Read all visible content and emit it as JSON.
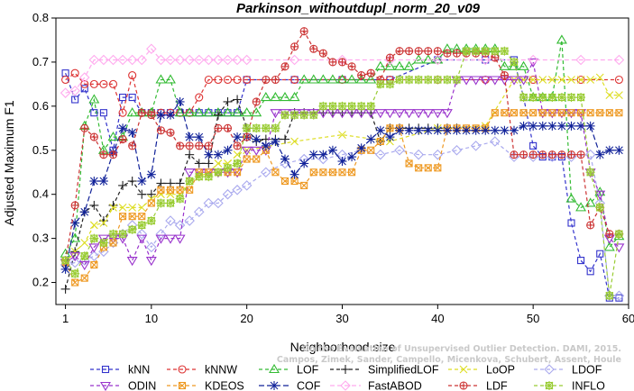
{
  "chart_data": {
    "type": "line",
    "title": "Parkinson_withoutdupl_norm_20_v09",
    "xlabel": "Neighborhood size",
    "ylabel": "Adjusted Maximum F1",
    "xlim": [
      0,
      60
    ],
    "ylim": [
      0.15,
      0.8
    ],
    "xticks": [
      1,
      10,
      20,
      30,
      40,
      50,
      60
    ],
    "yticks": [
      0.2,
      0.3,
      0.4,
      0.5,
      0.6,
      0.7,
      0.8
    ],
    "grid": false,
    "legend_position": "bottom",
    "credit": "Campos, Zimek, Sander, Campello, Micenkova, Schubert, Assent, Houle",
    "credit_source": "On the Evaluation of Unsupervised Outlier Detection. DAMI, 2015.",
    "series": [
      {
        "name": "kNN",
        "color": "#3333cc",
        "marker": "square",
        "dash": "4,3",
        "x": [
          1,
          2,
          3,
          4,
          5,
          6,
          7,
          8,
          9,
          10,
          11,
          12,
          13,
          14,
          15,
          16,
          17,
          18,
          19,
          20,
          25,
          30,
          35,
          40,
          45,
          48,
          49,
          50,
          51,
          52,
          53,
          54,
          55,
          56,
          57,
          58,
          59
        ],
        "y": [
          0.675,
          0.615,
          0.64,
          0.585,
          0.585,
          0.5,
          0.62,
          0.62,
          0.585,
          0.585,
          0.585,
          0.585,
          0.585,
          0.585,
          0.585,
          0.585,
          0.585,
          0.585,
          0.585,
          0.66,
          0.66,
          0.66,
          0.66,
          0.705,
          0.705,
          0.705,
          0.62,
          0.51,
          0.485,
          0.485,
          0.485,
          0.335,
          0.25,
          0.225,
          0.265,
          0.165,
          0.165
        ]
      },
      {
        "name": "kNNW",
        "color": "#dd3333",
        "marker": "circle",
        "dash": "4,3",
        "x": [
          1,
          2,
          3,
          4,
          5,
          6,
          7,
          8,
          9,
          10,
          11,
          12,
          13,
          14,
          15,
          16,
          17,
          18,
          19,
          20,
          25,
          30,
          35,
          40,
          45,
          50,
          55,
          59
        ],
        "y": [
          0.66,
          0.675,
          0.65,
          0.65,
          0.65,
          0.65,
          0.585,
          0.67,
          0.585,
          0.585,
          0.585,
          0.585,
          0.585,
          0.585,
          0.62,
          0.66,
          0.66,
          0.66,
          0.66,
          0.66,
          0.66,
          0.66,
          0.66,
          0.66,
          0.66,
          0.66,
          0.66,
          0.66
        ]
      },
      {
        "name": "LOF",
        "color": "#33bb33",
        "marker": "triangle",
        "dash": "4,3",
        "x": [
          1,
          2,
          3,
          4,
          5,
          6,
          7,
          8,
          9,
          10,
          11,
          12,
          13,
          14,
          15,
          16,
          17,
          18,
          19,
          20,
          21,
          22,
          23,
          24,
          25,
          26,
          27,
          28,
          29,
          30,
          31,
          32,
          33,
          34,
          35,
          36,
          37,
          38,
          39,
          40,
          41,
          42,
          43,
          44,
          45,
          46,
          47,
          48,
          49,
          50,
          51,
          52,
          53,
          54,
          55,
          56,
          57,
          58,
          59
        ],
        "y": [
          0.265,
          0.3,
          0.555,
          0.615,
          0.5,
          0.53,
          0.53,
          0.585,
          0.585,
          0.585,
          0.66,
          0.66,
          0.585,
          0.585,
          0.585,
          0.585,
          0.585,
          0.585,
          0.585,
          0.585,
          0.585,
          0.62,
          0.62,
          0.62,
          0.62,
          0.66,
          0.66,
          0.66,
          0.66,
          0.66,
          0.66,
          0.66,
          0.66,
          0.69,
          0.69,
          0.69,
          0.69,
          0.705,
          0.705,
          0.705,
          0.73,
          0.73,
          0.73,
          0.73,
          0.73,
          0.73,
          0.69,
          0.69,
          0.69,
          0.62,
          0.62,
          0.62,
          0.75,
          0.39,
          0.37,
          0.38,
          0.405,
          0.28,
          0.305
        ]
      },
      {
        "name": "SimplifiedLOF",
        "color": "#222222",
        "marker": "plus",
        "dash": "4,3",
        "x": [
          1,
          2,
          3,
          4,
          5,
          6,
          7,
          8,
          9,
          10,
          11,
          12,
          13,
          14,
          15,
          16,
          17,
          18,
          19,
          20,
          21,
          22,
          23,
          24,
          25,
          26,
          27,
          28,
          29,
          30,
          31,
          32,
          33,
          34,
          35,
          36,
          37,
          38,
          39,
          40,
          41,
          42
        ],
        "y": [
          0.185,
          0.27,
          0.36,
          0.375,
          0.34,
          0.375,
          0.42,
          0.43,
          0.4,
          0.4,
          0.425,
          0.425,
          0.425,
          0.49,
          0.47,
          0.47,
          0.58,
          0.61,
          0.615,
          0.55,
          0.52,
          0.525,
          0.525,
          0.525,
          0.585,
          0.585,
          0.585,
          0.585,
          0.585,
          0.585,
          0.585,
          0.585,
          0.585,
          0.52,
          0.55,
          0.55,
          0.55,
          0.55,
          0.55,
          0.55,
          0.55,
          0.55
        ]
      },
      {
        "name": "LoOP",
        "color": "#dddd22",
        "marker": "cross",
        "dash": "4,3",
        "x": [
          1,
          2,
          3,
          4,
          5,
          6,
          7,
          8,
          9,
          10,
          11,
          12,
          13,
          14,
          15,
          16,
          17,
          18,
          19,
          20,
          25,
          30,
          35,
          40,
          45,
          48,
          49,
          50,
          51,
          52,
          53,
          54,
          55,
          56,
          57,
          58,
          59
        ],
        "y": [
          0.245,
          0.27,
          0.29,
          0.33,
          0.335,
          0.37,
          0.37,
          0.37,
          0.37,
          0.39,
          0.4,
          0.4,
          0.4,
          0.43,
          0.44,
          0.45,
          0.47,
          0.47,
          0.49,
          0.5,
          0.52,
          0.535,
          0.52,
          0.55,
          0.555,
          0.66,
          0.66,
          0.66,
          0.66,
          0.66,
          0.66,
          0.66,
          0.66,
          0.66,
          0.665,
          0.625,
          0.625
        ]
      },
      {
        "name": "LDOF",
        "color": "#aaaaee",
        "marker": "diamond",
        "dash": "4,3",
        "x": [
          1,
          2,
          3,
          4,
          5,
          6,
          7,
          8,
          9,
          10,
          11,
          12,
          13,
          14,
          15,
          16,
          17,
          18,
          19,
          20,
          22,
          24,
          26,
          28,
          30,
          32,
          34,
          36,
          38,
          40,
          42,
          44,
          46,
          48,
          50,
          52,
          54,
          56,
          57,
          58,
          59
        ],
        "y": [
          0.24,
          0.245,
          0.25,
          0.26,
          0.27,
          0.29,
          0.31,
          0.33,
          0.31,
          0.28,
          0.31,
          0.34,
          0.33,
          0.34,
          0.36,
          0.38,
          0.38,
          0.4,
          0.41,
          0.42,
          0.45,
          0.47,
          0.48,
          0.48,
          0.49,
          0.5,
          0.49,
          0.5,
          0.49,
          0.49,
          0.5,
          0.51,
          0.52,
          0.485,
          0.485,
          0.485,
          0.485,
          0.49,
          0.38,
          0.17,
          0.17
        ]
      },
      {
        "name": "ODIN",
        "color": "#9933cc",
        "marker": "invtriangle",
        "dash": "4,3",
        "x": [
          1,
          2,
          3,
          4,
          5,
          6,
          7,
          8,
          9,
          10,
          11,
          12,
          13,
          14,
          15,
          16,
          17,
          18,
          19,
          20,
          21,
          22,
          23,
          24,
          25,
          26,
          27,
          28,
          29,
          30,
          31,
          32,
          33,
          34,
          35,
          36,
          37,
          38,
          39,
          40,
          41,
          42,
          43,
          44,
          45,
          46,
          47,
          48,
          49,
          50,
          51,
          52,
          53,
          54,
          55,
          56,
          57,
          58,
          59
        ],
        "y": [
          0.245,
          0.26,
          0.24,
          0.28,
          0.3,
          0.3,
          0.3,
          0.25,
          0.3,
          0.25,
          0.3,
          0.3,
          0.3,
          0.45,
          0.45,
          0.45,
          0.45,
          0.45,
          0.45,
          0.5,
          0.5,
          0.5,
          0.585,
          0.585,
          0.585,
          0.585,
          0.585,
          0.585,
          0.585,
          0.585,
          0.585,
          0.585,
          0.585,
          0.585,
          0.585,
          0.585,
          0.585,
          0.585,
          0.585,
          0.585,
          0.585,
          0.66,
          0.66,
          0.66,
          0.66,
          0.66,
          0.66,
          0.66,
          0.66,
          0.7,
          0.585,
          0.585,
          0.585,
          0.585,
          0.585,
          0.45,
          0.4,
          0.3,
          0.28
        ]
      },
      {
        "name": "KDEOS",
        "color": "#ee9922",
        "marker": "squarex",
        "dash": "4,3",
        "x": [
          1,
          2,
          3,
          4,
          5,
          6,
          7,
          8,
          9,
          10,
          11,
          12,
          13,
          14,
          15,
          16,
          17,
          18,
          19,
          20,
          21,
          22,
          23,
          24,
          25,
          26,
          27,
          28,
          29,
          30,
          31,
          32,
          33,
          34,
          35,
          36,
          37,
          38,
          39,
          40,
          41,
          42,
          43,
          44,
          45,
          46,
          47,
          48,
          49,
          50,
          51,
          52,
          53,
          54,
          55,
          56,
          57,
          58,
          59
        ],
        "y": [
          0.245,
          0.2,
          0.21,
          0.24,
          0.28,
          0.29,
          0.35,
          0.35,
          0.35,
          0.38,
          0.41,
          0.41,
          0.41,
          0.41,
          0.45,
          0.45,
          0.45,
          0.45,
          0.45,
          0.48,
          0.48,
          0.5,
          0.45,
          0.43,
          0.43,
          0.42,
          0.45,
          0.45,
          0.45,
          0.45,
          0.45,
          0.5,
          0.5,
          0.52,
          0.55,
          0.55,
          0.47,
          0.46,
          0.46,
          0.46,
          0.55,
          0.55,
          0.55,
          0.55,
          0.55,
          0.585,
          0.585,
          0.585,
          0.585,
          0.585,
          0.585,
          0.585,
          0.585,
          0.585,
          0.585,
          0.585,
          0.585,
          0.585,
          0.585
        ]
      },
      {
        "name": "COF",
        "color": "#112299",
        "marker": "asterisk",
        "dash": "6,3",
        "x": [
          1,
          2,
          3,
          4,
          5,
          6,
          7,
          8,
          9,
          10,
          11,
          12,
          13,
          14,
          15,
          16,
          17,
          18,
          19,
          20,
          21,
          22,
          23,
          24,
          25,
          26,
          27,
          28,
          29,
          30,
          31,
          32,
          33,
          34,
          35,
          36,
          37,
          38,
          39,
          40,
          41,
          42,
          43,
          44,
          45,
          46,
          47,
          48,
          49,
          50,
          51,
          52,
          53,
          54,
          55,
          56,
          57,
          58,
          59
        ],
        "y": [
          0.23,
          0.335,
          0.36,
          0.43,
          0.43,
          0.495,
          0.55,
          0.54,
          0.43,
          0.445,
          0.58,
          0.58,
          0.61,
          0.53,
          0.53,
          0.49,
          0.49,
          0.5,
          0.53,
          0.53,
          0.525,
          0.51,
          0.52,
          0.48,
          0.445,
          0.47,
          0.49,
          0.49,
          0.5,
          0.475,
          0.485,
          0.505,
          0.525,
          0.545,
          0.53,
          0.545,
          0.545,
          0.545,
          0.545,
          0.545,
          0.545,
          0.545,
          0.545,
          0.545,
          0.545,
          0.545,
          0.545,
          0.545,
          0.555,
          0.555,
          0.555,
          0.555,
          0.555,
          0.555,
          0.555,
          0.555,
          0.49,
          0.5,
          0.5
        ]
      },
      {
        "name": "FastABOD",
        "color": "#ffaaee",
        "marker": "diamond",
        "dash": "5,3",
        "x": [
          1,
          2,
          3,
          4,
          5,
          6,
          7,
          8,
          9,
          10,
          11,
          12,
          13,
          14,
          15,
          16,
          17,
          18,
          19,
          20,
          25,
          30,
          35,
          40,
          45,
          50,
          55,
          59
        ],
        "y": [
          0.63,
          0.635,
          0.665,
          0.705,
          0.705,
          0.705,
          0.705,
          0.705,
          0.705,
          0.73,
          0.705,
          0.705,
          0.705,
          0.705,
          0.705,
          0.705,
          0.705,
          0.705,
          0.705,
          0.705,
          0.705,
          0.705,
          0.705,
          0.705,
          0.705,
          0.705,
          0.705,
          0.705
        ]
      },
      {
        "name": "LDF",
        "color": "#cc3333",
        "marker": "circleplus",
        "dash": "4,3",
        "x": [
          1,
          2,
          3,
          4,
          5,
          6,
          7,
          8,
          9,
          10,
          11,
          12,
          13,
          14,
          15,
          16,
          17,
          18,
          19,
          20,
          21,
          22,
          23,
          24,
          25,
          26,
          27,
          28,
          29,
          30,
          31,
          32,
          33,
          34,
          35,
          36,
          37,
          38,
          39,
          40,
          41,
          42,
          43,
          44,
          45,
          46,
          47,
          48,
          49,
          50,
          51,
          52,
          53,
          54,
          55,
          56,
          57,
          58,
          59
        ],
        "y": [
          0.25,
          0.375,
          0.55,
          0.53,
          0.49,
          0.49,
          0.525,
          0.51,
          0.585,
          0.58,
          0.545,
          0.54,
          0.51,
          0.51,
          0.51,
          0.51,
          0.55,
          0.55,
          0.51,
          0.53,
          0.61,
          0.66,
          0.66,
          0.69,
          0.735,
          0.77,
          0.73,
          0.72,
          0.7,
          0.7,
          0.69,
          0.67,
          0.675,
          0.66,
          0.71,
          0.725,
          0.725,
          0.725,
          0.725,
          0.725,
          0.72,
          0.72,
          0.72,
          0.72,
          0.72,
          0.71,
          0.67,
          0.49,
          0.49,
          0.49,
          0.49,
          0.49,
          0.49,
          0.49,
          0.49,
          0.33,
          0.37,
          0.31,
          0.31
        ]
      },
      {
        "name": "INFLO",
        "color": "#99cc33",
        "marker": "starbox",
        "dash": "4,3",
        "x": [
          1,
          2,
          3,
          4,
          5,
          6,
          7,
          8,
          9,
          10,
          11,
          12,
          13,
          14,
          15,
          16,
          17,
          18,
          19,
          20,
          21,
          22,
          23,
          24,
          25,
          26,
          27,
          28,
          29,
          30,
          31,
          32,
          33,
          34,
          35,
          36,
          37,
          38,
          39,
          40,
          41,
          42,
          43,
          44,
          45,
          46,
          47,
          48,
          49,
          50,
          51,
          52,
          53,
          54,
          55,
          56,
          57,
          58,
          59
        ],
        "y": [
          0.25,
          0.22,
          0.26,
          0.3,
          0.29,
          0.31,
          0.31,
          0.32,
          0.33,
          0.34,
          0.38,
          0.38,
          0.39,
          0.43,
          0.44,
          0.44,
          0.45,
          0.46,
          0.47,
          0.55,
          0.55,
          0.55,
          0.55,
          0.58,
          0.58,
          0.58,
          0.58,
          0.6,
          0.6,
          0.6,
          0.6,
          0.6,
          0.6,
          0.65,
          0.65,
          0.66,
          0.66,
          0.66,
          0.66,
          0.66,
          0.66,
          0.66,
          0.725,
          0.725,
          0.725,
          0.725,
          0.725,
          0.7,
          0.62,
          0.62,
          0.62,
          0.62,
          0.62,
          0.62,
          0.62,
          0.45,
          0.37,
          0.17,
          0.31
        ]
      }
    ]
  }
}
